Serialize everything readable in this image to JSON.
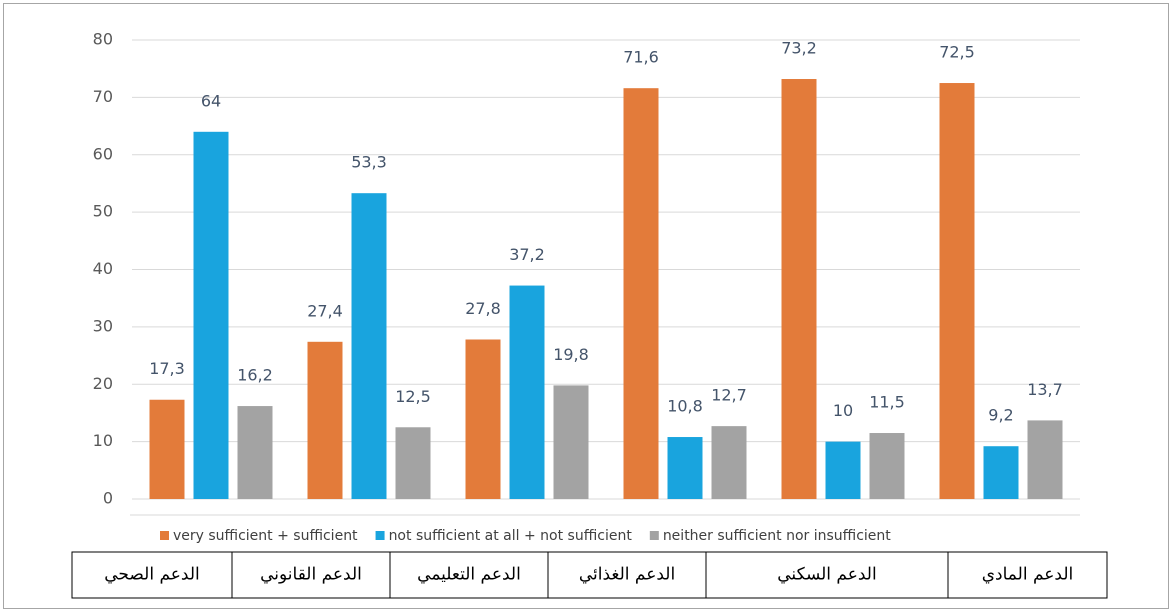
{
  "chart_data": {
    "type": "bar",
    "categories": [
      "الدعم الصحي",
      "الدعم القانوني",
      "الدعم التعليمي",
      "الدعم الغذائي",
      "الدعم السكني",
      "الدعم المادي"
    ],
    "series": [
      {
        "name": "very sufficient + sufficient",
        "color": "#e37b3a",
        "values": [
          17.3,
          27.4,
          27.8,
          71.6,
          73.2,
          72.5
        ],
        "value_labels": [
          "17,3",
          "27,4",
          "27,8",
          "71,6",
          "73,2",
          "72,5"
        ]
      },
      {
        "name": "not sufficient at all + not sufficient",
        "color": "#19a4de",
        "values": [
          64,
          53.3,
          37.2,
          10.8,
          10,
          9.2
        ],
        "value_labels": [
          "64",
          "53,3",
          "37,2",
          "10,8",
          "10",
          "9,2"
        ]
      },
      {
        "name": "neither sufficient nor insufficient",
        "color": "#a3a3a3",
        "values": [
          16.2,
          12.5,
          19.8,
          12.7,
          11.5,
          13.7
        ],
        "value_labels": [
          "16,2",
          "12,5",
          "19,8",
          "12,7",
          "11,5",
          "13,7"
        ]
      }
    ],
    "ylim": [
      0,
      80
    ],
    "yticks": [
      0,
      10,
      20,
      30,
      40,
      50,
      60,
      70,
      80
    ],
    "grid": true,
    "legend": "bottom"
  }
}
